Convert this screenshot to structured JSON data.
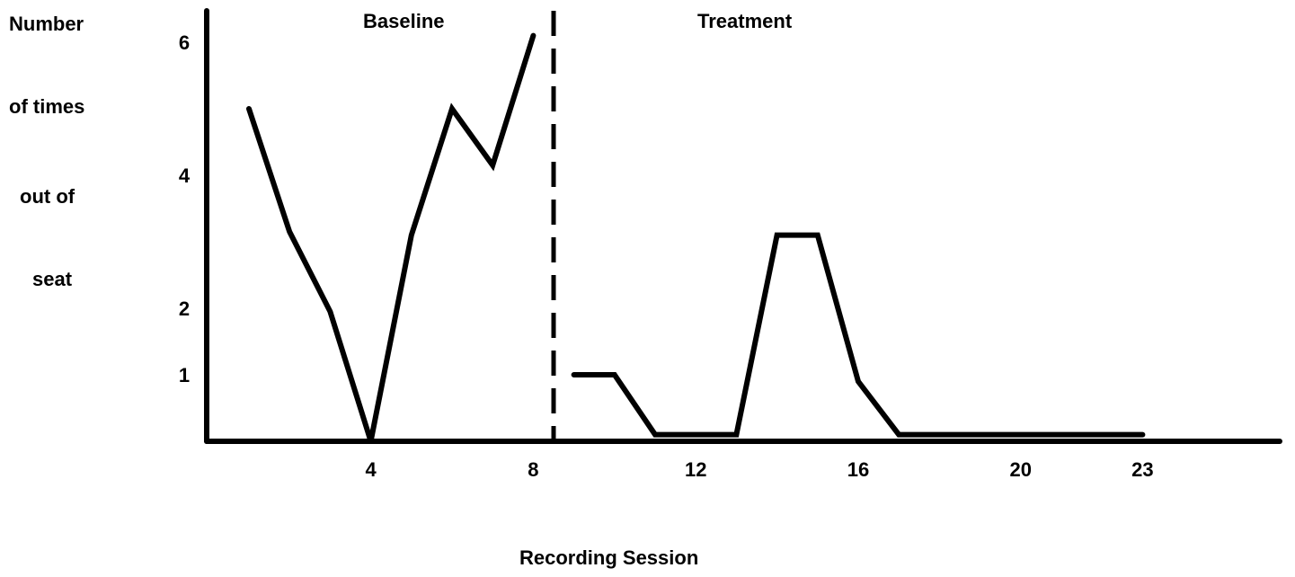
{
  "chart_data": {
    "type": "line",
    "title": "",
    "ylabel_lines": [
      "Number",
      "of times",
      "out of",
      "seat"
    ],
    "xlabel": "Recording Session",
    "phases": [
      "Baseline",
      "Treatment"
    ],
    "phase_change_after_session": 8.5,
    "x_ticks": [
      4,
      8,
      12,
      16,
      20,
      23
    ],
    "y_ticks": [
      1,
      2,
      4,
      6
    ],
    "xlim": [
      0,
      27
    ],
    "ylim": [
      0,
      6.5
    ],
    "grid": false,
    "series": [
      {
        "phase": "Baseline",
        "x": [
          1,
          2,
          3,
          4,
          5,
          6,
          7,
          8
        ],
        "y": [
          5,
          3.15,
          1.95,
          0,
          3.1,
          5,
          4.15,
          6.1
        ]
      },
      {
        "phase": "Treatment",
        "x": [
          9,
          10,
          11,
          12,
          13,
          14,
          15,
          16,
          17,
          18,
          19,
          20,
          21,
          22,
          23
        ],
        "y": [
          1,
          1,
          0.1,
          0.1,
          0.1,
          3.1,
          3.1,
          0.9,
          0.1,
          0.1,
          0.1,
          0.1,
          0.1,
          0.1,
          0.1
        ]
      }
    ]
  }
}
